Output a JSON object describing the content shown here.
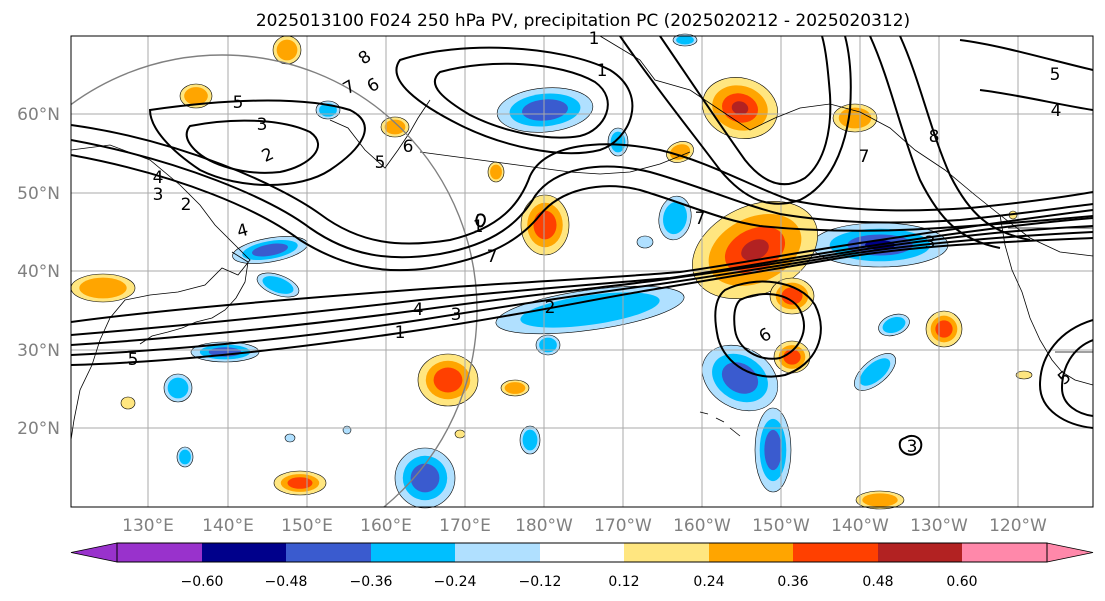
{
  "title": "2025013100 F024 250 hPa PV, precipitation PC (2025020212 - 2025020312)",
  "lat_labels": [
    "60°N",
    "50°N",
    "40°N",
    "30°N",
    "20°N"
  ],
  "lon_labels": [
    "130°E",
    "140°E",
    "150°E",
    "160°E",
    "170°E",
    "180°W",
    "170°W",
    "160°W",
    "150°W",
    "140°W",
    "130°W",
    "120°W"
  ],
  "contour_labels": [
    "8",
    "7",
    "6",
    "5",
    "4",
    "3",
    "2",
    "1",
    "7",
    "6",
    "5",
    "4",
    "3",
    "2",
    "1",
    "5",
    "4",
    "3",
    "2",
    "1",
    "1",
    "7",
    "5",
    "4",
    "8",
    "7",
    "3",
    "6",
    "5",
    "3"
  ],
  "colorbar": {
    "ticks": [
      "−0.60",
      "−0.48",
      "−0.36",
      "−0.24",
      "−0.12",
      "0.12",
      "0.24",
      "0.36",
      "0.48",
      "0.60"
    ],
    "colors": [
      "#9932cc",
      "#00008b",
      "#3a5bcf",
      "#00bfff",
      "#b0e0ff",
      "#ffffff",
      "#ffe680",
      "#ffa500",
      "#ff4000",
      "#b22222",
      "#ff88aa"
    ]
  },
  "fill_colors": {
    "neg_light": "#b0e0ff",
    "neg_mid": "#00bfff",
    "neg_strong": "#3a5bcf",
    "neg_max": "#00008b",
    "pos_light": "#ffe680",
    "pos_mid": "#ffa500",
    "pos_strong": "#ff4000",
    "pos_max": "#b22222"
  }
}
